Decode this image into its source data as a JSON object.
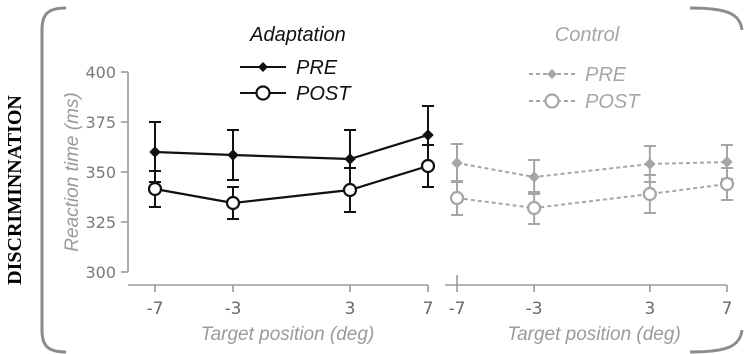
{
  "side_label": "DISCRIMINNATION",
  "colors": {
    "adaptation": "#111111",
    "control": "#a6a6a6",
    "axis": "#9a9a9a",
    "tick_text": "#7a7a7a",
    "frame": "#8c8c8c"
  },
  "chart_data": [
    {
      "type": "line",
      "title": "Adaptation",
      "xlabel": "Target position (deg)",
      "ylabel": "Reaction time (ms)",
      "x": [
        -7,
        -3,
        3,
        7
      ],
      "x_tick_labels": [
        "-7",
        "-3",
        "3",
        "7"
      ],
      "ylim": [
        300,
        400
      ],
      "y_ticks": [
        300,
        325,
        350,
        375,
        400
      ],
      "grid": false,
      "legend_position": "top-center",
      "series": [
        {
          "name": "PRE",
          "marker": "filled-diamond",
          "line": "solid",
          "values": [
            360,
            358.5,
            356.5,
            368.5
          ],
          "errors": [
            15,
            12.5,
            14.5,
            14.5
          ]
        },
        {
          "name": "POST",
          "marker": "open-circle",
          "line": "solid",
          "values": [
            341.5,
            334.5,
            341,
            353
          ],
          "errors": [
            9,
            8,
            11,
            10.5
          ]
        }
      ]
    },
    {
      "type": "line",
      "title": "Control",
      "xlabel": "Target position (deg)",
      "ylabel": "",
      "x": [
        -7,
        -3,
        3,
        7
      ],
      "x_tick_labels": [
        "-7",
        "-3",
        "3",
        "7"
      ],
      "ylim": [
        300,
        400
      ],
      "grid": false,
      "legend_position": "top-center",
      "series": [
        {
          "name": "PRE",
          "marker": "filled-diamond",
          "line": "dotted",
          "values": [
            354.5,
            347.5,
            354,
            355
          ],
          "errors": [
            9.5,
            8.5,
            9,
            8.5
          ]
        },
        {
          "name": "POST",
          "marker": "open-circle",
          "line": "dotted",
          "values": [
            337,
            332,
            339,
            344
          ],
          "errors": [
            8.5,
            8,
            9.5,
            8
          ]
        }
      ]
    }
  ]
}
